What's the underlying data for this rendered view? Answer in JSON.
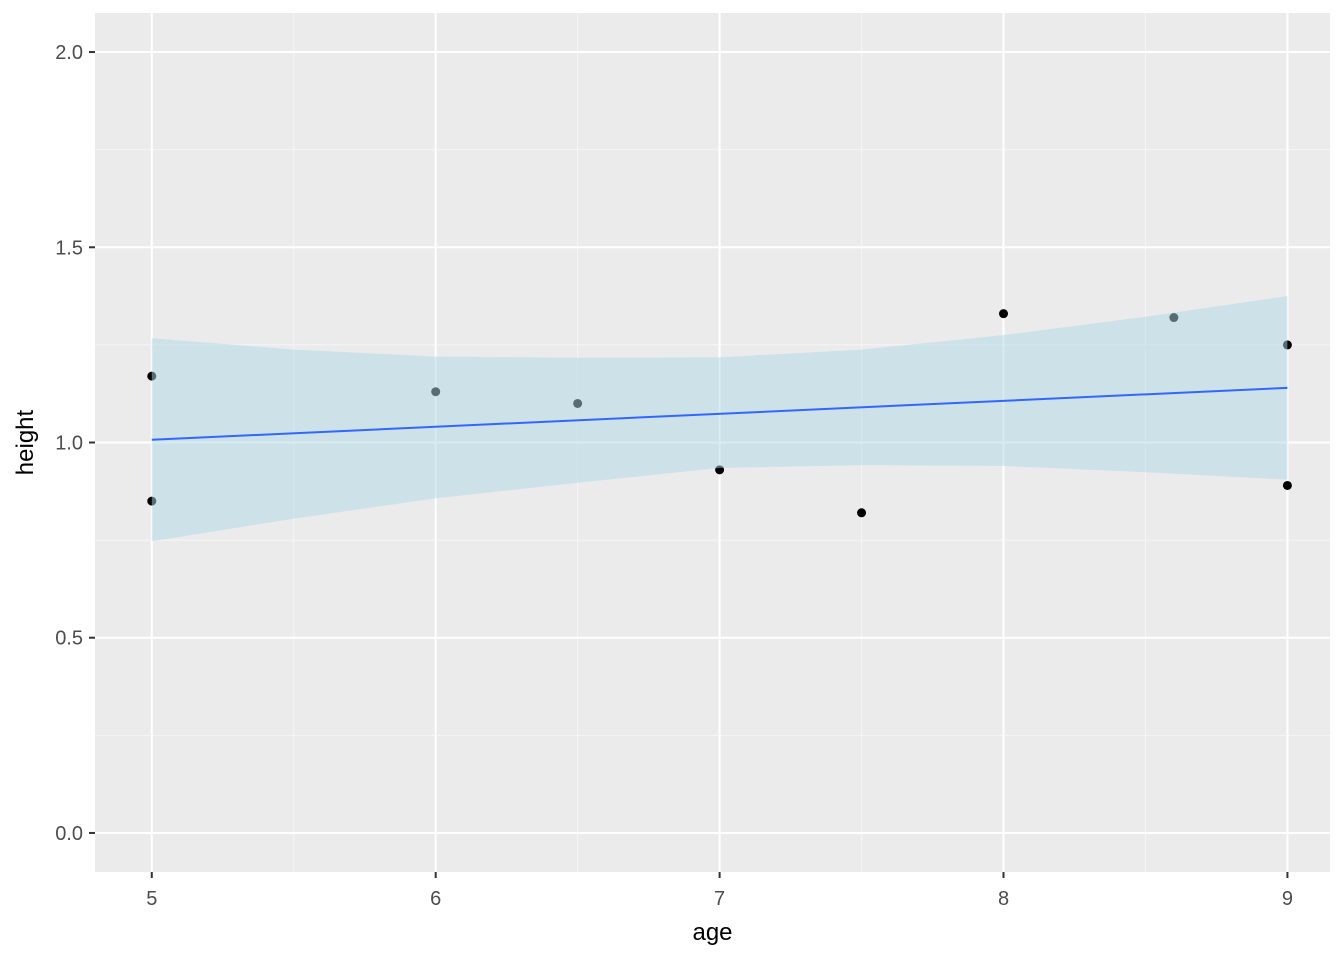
{
  "chart_data": {
    "type": "scatter",
    "title": "",
    "xlabel": "age",
    "ylabel": "height",
    "xlim": [
      4.8,
      9.15
    ],
    "ylim": [
      -0.1,
      2.1
    ],
    "x_ticks": [
      5,
      6,
      7,
      8,
      9
    ],
    "x_tick_labels": [
      "5",
      "6",
      "7",
      "8",
      "9"
    ],
    "x_minor_ticks": [
      5.5,
      6.5,
      7.5,
      8.5
    ],
    "y_ticks": [
      0.0,
      0.5,
      1.0,
      1.5,
      2.0
    ],
    "y_tick_labels": [
      "0.0",
      "0.5",
      "1.0",
      "1.5",
      "2.0"
    ],
    "y_minor_ticks": [
      0.25,
      0.75,
      1.25,
      1.75
    ],
    "grid": true,
    "points": [
      {
        "x": 5,
        "y": 1.17
      },
      {
        "x": 5,
        "y": 0.85
      },
      {
        "x": 6,
        "y": 1.13
      },
      {
        "x": 6.5,
        "y": 1.1
      },
      {
        "x": 7,
        "y": 0.93
      },
      {
        "x": 7.5,
        "y": 0.82
      },
      {
        "x": 8,
        "y": 1.33
      },
      {
        "x": 8.6,
        "y": 1.32
      },
      {
        "x": 9,
        "y": 1.25
      },
      {
        "x": 9,
        "y": 0.89
      }
    ],
    "trend_line": {
      "x": [
        5,
        9
      ],
      "y": [
        1.007,
        1.14
      ]
    },
    "confidence_band": {
      "x": [
        5,
        5.5,
        6,
        6.5,
        7,
        7.5,
        8,
        8.5,
        9
      ],
      "upper": [
        1.267,
        1.238,
        1.22,
        1.217,
        1.218,
        1.238,
        1.275,
        1.322,
        1.375
      ],
      "lower": [
        0.747,
        0.805,
        0.857,
        0.897,
        0.935,
        0.942,
        0.94,
        0.924,
        0.905
      ]
    },
    "colors": {
      "panel": "#ebebeb",
      "grid_major": "#ffffff",
      "grid_minor": "#f5f5f5",
      "points": "#000000",
      "trend_line": "#3366ff",
      "band": "#add8e6"
    }
  }
}
